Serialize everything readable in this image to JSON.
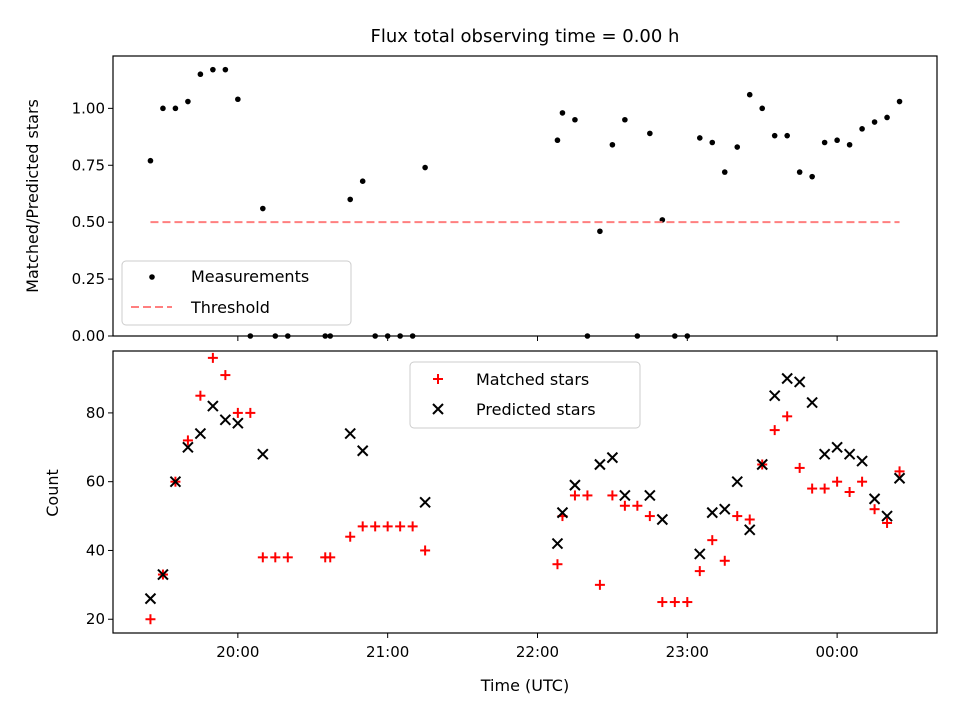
{
  "chart_data": [
    {
      "type": "scatter",
      "title": "Flux total observing time = 0.00 h",
      "xlabel": "",
      "ylabel": "Matched/Predicted stars",
      "xlim": [
        "19:10",
        "00:40"
      ],
      "ylim": [
        0,
        1.23
      ],
      "yticks": [
        "0.00",
        "0.25",
        "0.50",
        "0.75",
        "1.00"
      ],
      "legend_position": "lower-left",
      "series": [
        {
          "name": "Measurements",
          "marker": "dot",
          "color": "#000000",
          "points": [
            [
              "19:25",
              0.77
            ],
            [
              "19:30",
              1.0
            ],
            [
              "19:35",
              1.0
            ],
            [
              "19:40",
              1.03
            ],
            [
              "19:45",
              1.15
            ],
            [
              "19:50",
              1.17
            ],
            [
              "19:55",
              1.17
            ],
            [
              "20:00",
              1.04
            ],
            [
              "20:05",
              0.0
            ],
            [
              "20:10",
              0.56
            ],
            [
              "20:15",
              0.0
            ],
            [
              "20:20",
              0.0
            ],
            [
              "20:35",
              0.0
            ],
            [
              "20:37",
              0.0
            ],
            [
              "20:45",
              0.6
            ],
            [
              "20:50",
              0.68
            ],
            [
              "20:55",
              0.0
            ],
            [
              "21:00",
              0.0
            ],
            [
              "21:05",
              0.0
            ],
            [
              "21:10",
              0.0
            ],
            [
              "21:15",
              0.74
            ],
            [
              "22:08",
              0.86
            ],
            [
              "22:10",
              0.98
            ],
            [
              "22:15",
              0.95
            ],
            [
              "22:20",
              0.0
            ],
            [
              "22:25",
              0.46
            ],
            [
              "22:30",
              0.84
            ],
            [
              "22:35",
              0.95
            ],
            [
              "22:40",
              0.0
            ],
            [
              "22:45",
              0.89
            ],
            [
              "22:50",
              0.51
            ],
            [
              "22:55",
              0.0
            ],
            [
              "23:00",
              0.0
            ],
            [
              "23:05",
              0.87
            ],
            [
              "23:10",
              0.85
            ],
            [
              "23:15",
              0.72
            ],
            [
              "23:20",
              0.83
            ],
            [
              "23:25",
              1.06
            ],
            [
              "23:30",
              1.0
            ],
            [
              "23:35",
              0.88
            ],
            [
              "23:40",
              0.88
            ],
            [
              "23:45",
              0.72
            ],
            [
              "23:50",
              0.7
            ],
            [
              "23:55",
              0.85
            ],
            [
              "00:00",
              0.86
            ],
            [
              "00:05",
              0.84
            ],
            [
              "00:10",
              0.91
            ],
            [
              "00:15",
              0.94
            ],
            [
              "00:20",
              0.96
            ],
            [
              "00:25",
              1.03
            ]
          ]
        },
        {
          "name": "Threshold",
          "marker": "dashed-line",
          "color": "#ff7f7f",
          "points": [
            [
              "19:25",
              0.5
            ],
            [
              "00:25",
              0.5
            ]
          ]
        }
      ]
    },
    {
      "type": "scatter",
      "title": "",
      "xlabel": "Time (UTC)",
      "ylabel": "Count",
      "xlim": [
        "19:10",
        "00:40"
      ],
      "ylim": [
        16,
        98
      ],
      "xticks": [
        "20:00",
        "21:00",
        "22:00",
        "23:00",
        "00:00"
      ],
      "yticks": [
        "20",
        "40",
        "60",
        "80"
      ],
      "legend_position": "upper-center",
      "series": [
        {
          "name": "Matched stars",
          "marker": "plus",
          "color": "#ff0000",
          "points": [
            [
              "19:25",
              20
            ],
            [
              "19:30",
              33
            ],
            [
              "19:35",
              60
            ],
            [
              "19:40",
              72
            ],
            [
              "19:45",
              85
            ],
            [
              "19:50",
              96
            ],
            [
              "19:55",
              91
            ],
            [
              "20:00",
              80
            ],
            [
              "20:05",
              80
            ],
            [
              "20:10",
              38
            ],
            [
              "20:15",
              38
            ],
            [
              "20:20",
              38
            ],
            [
              "20:35",
              38
            ],
            [
              "20:37",
              38
            ],
            [
              "20:45",
              44
            ],
            [
              "20:50",
              47
            ],
            [
              "20:55",
              47
            ],
            [
              "21:00",
              47
            ],
            [
              "21:05",
              47
            ],
            [
              "21:10",
              47
            ],
            [
              "21:15",
              40
            ],
            [
              "22:08",
              36
            ],
            [
              "22:10",
              50
            ],
            [
              "22:15",
              56
            ],
            [
              "22:20",
              56
            ],
            [
              "22:25",
              30
            ],
            [
              "22:30",
              56
            ],
            [
              "22:35",
              53
            ],
            [
              "22:40",
              53
            ],
            [
              "22:45",
              50
            ],
            [
              "22:50",
              25
            ],
            [
              "22:55",
              25
            ],
            [
              "23:00",
              25
            ],
            [
              "23:05",
              34
            ],
            [
              "23:10",
              43
            ],
            [
              "23:15",
              37
            ],
            [
              "23:20",
              50
            ],
            [
              "23:25",
              49
            ],
            [
              "23:30",
              65
            ],
            [
              "23:35",
              75
            ],
            [
              "23:40",
              79
            ],
            [
              "23:45",
              64
            ],
            [
              "23:50",
              58
            ],
            [
              "23:55",
              58
            ],
            [
              "00:00",
              60
            ],
            [
              "00:05",
              57
            ],
            [
              "00:10",
              60
            ],
            [
              "00:15",
              52
            ],
            [
              "00:20",
              48
            ],
            [
              "00:25",
              63
            ]
          ]
        },
        {
          "name": "Predicted stars",
          "marker": "x",
          "color": "#000000",
          "points": [
            [
              "19:25",
              26
            ],
            [
              "19:30",
              33
            ],
            [
              "19:35",
              60
            ],
            [
              "19:40",
              70
            ],
            [
              "19:45",
              74
            ],
            [
              "19:50",
              82
            ],
            [
              "19:55",
              78
            ],
            [
              "20:00",
              77
            ],
            [
              "20:10",
              68
            ],
            [
              "20:45",
              74
            ],
            [
              "20:50",
              69
            ],
            [
              "21:15",
              54
            ],
            [
              "22:08",
              42
            ],
            [
              "22:10",
              51
            ],
            [
              "22:15",
              59
            ],
            [
              "22:25",
              65
            ],
            [
              "22:30",
              67
            ],
            [
              "22:35",
              56
            ],
            [
              "22:45",
              56
            ],
            [
              "22:50",
              49
            ],
            [
              "23:05",
              39
            ],
            [
              "23:10",
              51
            ],
            [
              "23:15",
              52
            ],
            [
              "23:20",
              60
            ],
            [
              "23:25",
              46
            ],
            [
              "23:30",
              65
            ],
            [
              "23:35",
              85
            ],
            [
              "23:40",
              90
            ],
            [
              "23:45",
              89
            ],
            [
              "23:50",
              83
            ],
            [
              "23:55",
              68
            ],
            [
              "00:00",
              70
            ],
            [
              "00:05",
              68
            ],
            [
              "00:10",
              66
            ],
            [
              "00:15",
              55
            ],
            [
              "00:20",
              50
            ],
            [
              "00:25",
              61
            ]
          ]
        }
      ]
    }
  ]
}
